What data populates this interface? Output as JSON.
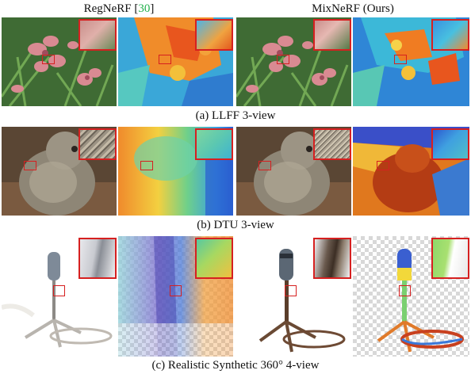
{
  "header": {
    "left_method": "RegNeRF",
    "left_cite_open": "[",
    "left_cite": "30",
    "left_cite_close": "]",
    "right_method": "MixNeRF (Ours)"
  },
  "captions": {
    "llff": "(a) LLFF 3-view",
    "dtu": "(b) DTU 3-view",
    "synthetic": "(c) Realistic Synthetic 360° 4-view"
  },
  "colors": {
    "citation": "#22b14c",
    "highlight_box": "#d62020"
  }
}
